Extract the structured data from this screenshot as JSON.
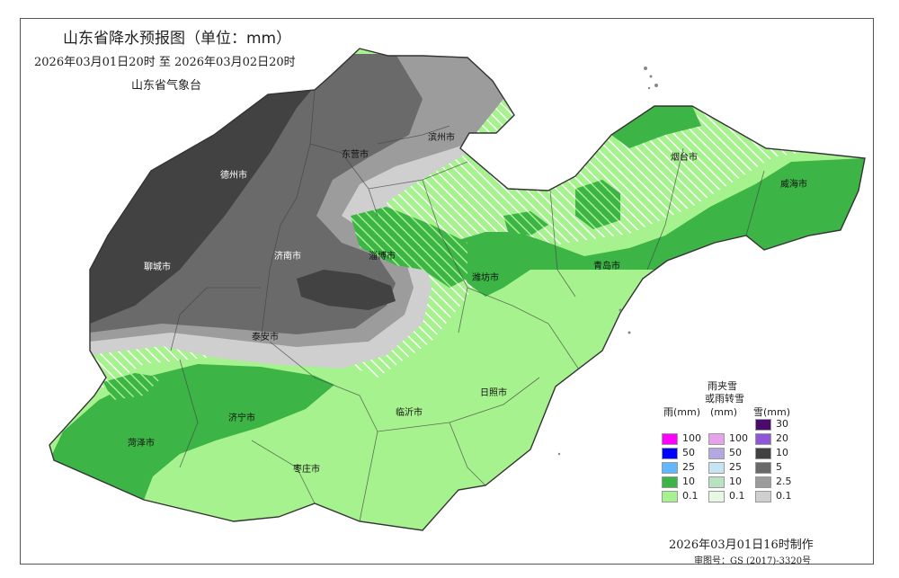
{
  "map": {
    "title": "山东省降水预报图（单位：mm）",
    "time_range": "2026年03月01日20时  至  2026年03月02日20时",
    "agency": "山东省气象台",
    "made_time": "2026年03月01日16时制作",
    "map_number": "审图号：GS (2017)-3320号"
  },
  "cities": [
    {
      "name": "德州市"
    },
    {
      "name": "滨州市"
    },
    {
      "name": "东营市"
    },
    {
      "name": "聊城市"
    },
    {
      "name": "济南市"
    },
    {
      "name": "淄博市"
    },
    {
      "name": "潍坊市"
    },
    {
      "name": "烟台市"
    },
    {
      "name": "威海市"
    },
    {
      "name": "青岛市"
    },
    {
      "name": "泰安市"
    },
    {
      "name": "济宁市"
    },
    {
      "name": "菏泽市"
    },
    {
      "name": "临沂市"
    },
    {
      "name": "日照市"
    },
    {
      "name": "枣庄市"
    }
  ],
  "legend": {
    "rain": {
      "title": "雨(mm)",
      "items": [
        {
          "label": "100",
          "color": "#ff00ff"
        },
        {
          "label": "50",
          "color": "#0000ff"
        },
        {
          "label": "25",
          "color": "#61b8ff"
        },
        {
          "label": "10",
          "color": "#3cb446"
        },
        {
          "label": "0.1",
          "color": "#a6f28e"
        }
      ]
    },
    "mixed": {
      "title_line1": "雨夹雪",
      "title_line2": "或雨转雪",
      "title_line3": "(mm)",
      "items": [
        {
          "label": "100",
          "color": "#e5a3e9"
        },
        {
          "label": "50",
          "color": "#b5a8e0"
        },
        {
          "label": "25",
          "color": "#c7e4f5"
        },
        {
          "label": "10",
          "color": "#b9e3c0"
        },
        {
          "label": "0.1",
          "color": "#e7f8e2"
        }
      ]
    },
    "snow": {
      "title": "雪(mm)",
      "items": [
        {
          "label": "30",
          "color": "#4a0a6e"
        },
        {
          "label": "20",
          "color": "#8f57d8"
        },
        {
          "label": "10",
          "color": "#424242"
        },
        {
          "label": "5",
          "color": "#6a6a6a"
        },
        {
          "label": "2.5",
          "color": "#9c9c9c"
        },
        {
          "label": "0.1",
          "color": "#cfcfcf"
        }
      ]
    }
  }
}
